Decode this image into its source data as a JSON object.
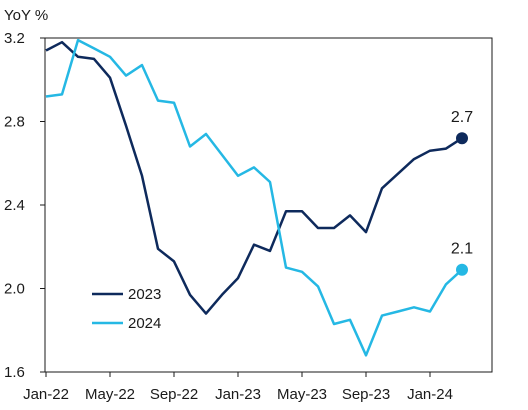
{
  "chart_data": {
    "type": "line",
    "ylabel": "YoY %",
    "ylim": [
      1.6,
      3.2
    ],
    "yticks": [
      1.6,
      2.0,
      2.4,
      2.8,
      3.2
    ],
    "ytick_labels": [
      "1.6",
      "2.0",
      "2.4",
      "2.8",
      "3.2"
    ],
    "xticks": [
      "Jan-22",
      "May-22",
      "Sep-22",
      "Jan-23",
      "May-23",
      "Sep-23",
      "Jan-24"
    ],
    "x": [
      "Jan-22",
      "Feb-22",
      "Mar-22",
      "Apr-22",
      "May-22",
      "Jun-22",
      "Jul-22",
      "Aug-22",
      "Sep-22",
      "Oct-22",
      "Nov-22",
      "Dec-22",
      "Jan-23",
      "Feb-23",
      "Mar-23",
      "Apr-23",
      "May-23",
      "Jun-23",
      "Jul-23",
      "Aug-23",
      "Sep-23",
      "Oct-23",
      "Nov-23",
      "Dec-23",
      "Jan-24",
      "Feb-24",
      "Mar-24"
    ],
    "legend_position": "bottom-left",
    "grid": false,
    "series": [
      {
        "name": "2023",
        "color": "#0e2a5c",
        "values": [
          3.14,
          3.18,
          3.11,
          3.1,
          3.01,
          2.78,
          2.54,
          2.19,
          2.13,
          1.97,
          1.88,
          1.97,
          2.05,
          2.21,
          2.18,
          2.37,
          2.37,
          2.29,
          2.29,
          2.35,
          2.27,
          2.48,
          2.55,
          2.62,
          2.66,
          2.67,
          2.72
        ],
        "end_label": "2.7"
      },
      {
        "name": "2024",
        "color": "#25b8e4",
        "values": [
          2.92,
          2.93,
          3.19,
          3.15,
          3.11,
          3.02,
          3.07,
          2.9,
          2.89,
          2.68,
          2.74,
          2.64,
          2.54,
          2.58,
          2.51,
          2.1,
          2.08,
          2.01,
          1.83,
          1.85,
          1.68,
          1.87,
          1.89,
          1.91,
          1.89,
          2.02,
          2.09
        ],
        "end_label": "2.1"
      }
    ]
  }
}
